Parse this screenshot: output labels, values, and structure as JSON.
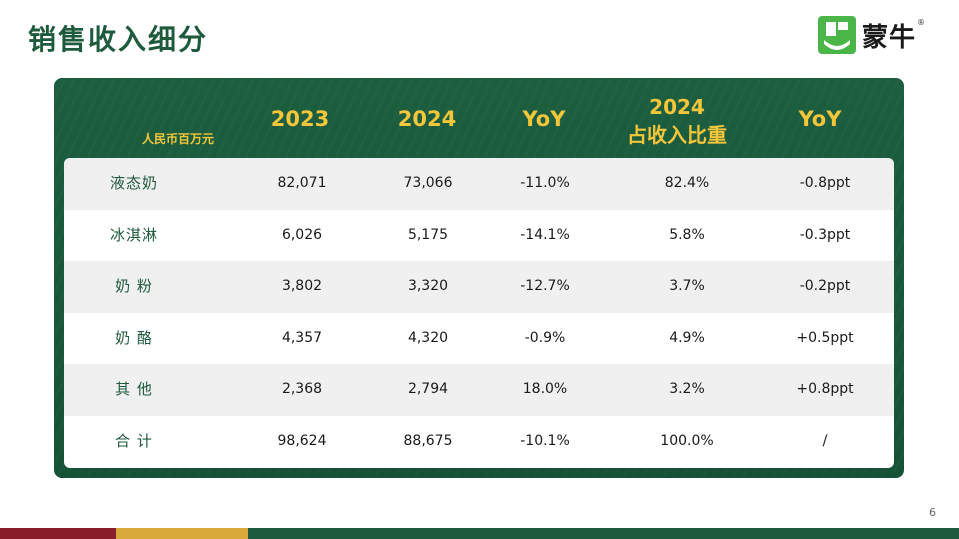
{
  "title": "销售收入细分",
  "logo": {
    "text": "蒙牛",
    "registered": "®",
    "mark_color": "#4bb648",
    "brand_color": "#1e5a3c"
  },
  "table": {
    "unit_label": "人民币百万元",
    "headers": {
      "y2023": "2023",
      "y2024": "2024",
      "yoy": "YoY",
      "share_line1": "2024",
      "share_line2": "占收入比重",
      "share_yoy": "YoY"
    },
    "rows": [
      {
        "name": "液态奶",
        "v2023": "82,071",
        "v2024": "73,066",
        "yoy": "-11.0%",
        "share": "82.4%",
        "share_yoy": "-0.8ppt"
      },
      {
        "name": "冰淇淋",
        "v2023": "6,026",
        "v2024": "5,175",
        "yoy": "-14.1%",
        "share": "5.8%",
        "share_yoy": "-0.3ppt"
      },
      {
        "name": "奶 粉",
        "v2023": "3,802",
        "v2024": "3,320",
        "yoy": "-12.7%",
        "share": "3.7%",
        "share_yoy": "-0.2ppt"
      },
      {
        "name": "奶 酪",
        "v2023": "4,357",
        "v2024": "4,320",
        "yoy": "-0.9%",
        "share": "4.9%",
        "share_yoy": "+0.5ppt"
      },
      {
        "name": "其 他",
        "v2023": "2,368",
        "v2024": "2,794",
        "yoy": "18.0%",
        "share": "3.2%",
        "share_yoy": "+0.8ppt"
      },
      {
        "name": "合 计",
        "v2023": "98,624",
        "v2024": "88,675",
        "yoy": "-10.1%",
        "share": "100.0%",
        "share_yoy": "/"
      }
    ]
  },
  "page_number": "6",
  "colors": {
    "panel_green": "#1c5e3f",
    "header_gold": "#f5c53a",
    "footer_red": "#8a1f2c",
    "footer_gold": "#d9a93c"
  }
}
